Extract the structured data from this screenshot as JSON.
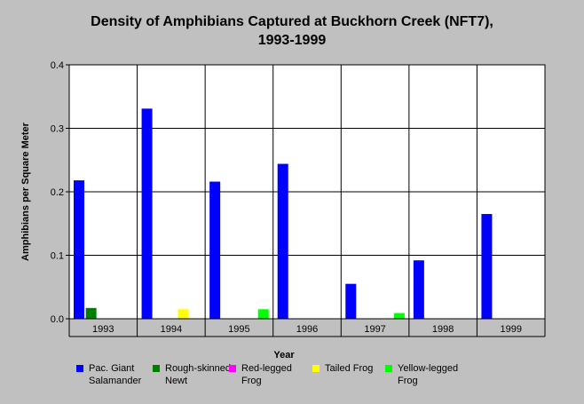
{
  "chart_data": {
    "type": "bar",
    "title_line1": "Density of Amphibians Captured at Buckhorn Creek (NFT7),",
    "title_line2": "1993-1999",
    "xlabel": "Year",
    "ylabel": "Amphibians per Square Meter",
    "ylim": [
      0,
      0.4
    ],
    "yticks": [
      "0.0",
      "0.1",
      "0.2",
      "0.3",
      "0.4"
    ],
    "grid": true,
    "legend_position": "bottom",
    "categories": [
      "1993",
      "1994",
      "1995",
      "1996",
      "1997",
      "1998",
      "1999"
    ],
    "series": [
      {
        "name_line1": "Pac. Giant",
        "name_line2": "Salamander",
        "color": "#0000ff",
        "values": [
          0.218,
          0.331,
          0.216,
          0.244,
          0.055,
          0.092,
          0.165
        ]
      },
      {
        "name_line1": "Rough-skinned",
        "name_line2": "Newt",
        "color": "#008000",
        "values": [
          0.017,
          0,
          0,
          0,
          0,
          0,
          0
        ]
      },
      {
        "name_line1": "Red-legged",
        "name_line2": "Frog",
        "color": "#ff00ff",
        "values": [
          0,
          0,
          0,
          0,
          0,
          0,
          0
        ]
      },
      {
        "name_line1": "Tailed Frog",
        "name_line2": "",
        "color": "#ffff00",
        "values": [
          0,
          0.015,
          0,
          0,
          0,
          0,
          0
        ]
      },
      {
        "name_line1": "Yellow-legged",
        "name_line2": "Frog",
        "color": "#00ff00",
        "values": [
          0,
          0,
          0.015,
          0,
          0.009,
          0,
          0
        ]
      }
    ]
  }
}
